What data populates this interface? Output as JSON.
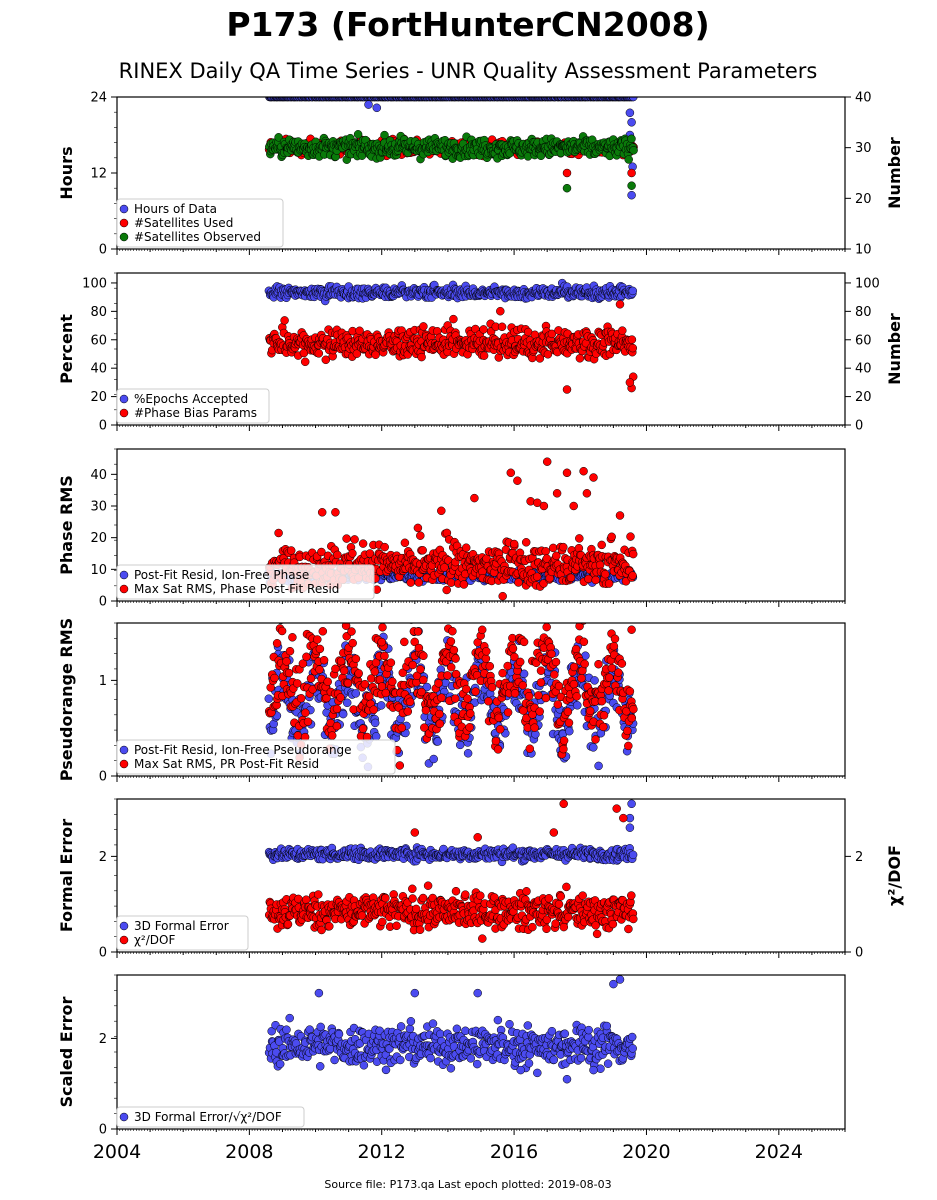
{
  "title": "P173 (FortHunterCN2008)",
  "subtitle": "RINEX Daily QA Time Series - UNR Quality Assessment Parameters",
  "footer": "Source file: P173.qa Last epoch plotted: 2019-08-03",
  "colors": {
    "blue": "#4b4bf0",
    "red": "#ff0000",
    "green": "#0a7a0a",
    "edge": "#000000"
  },
  "chart_data": [
    {
      "type": "scatter",
      "id": "hours",
      "ylabel": "Hours",
      "ylim": [
        0,
        24
      ],
      "yticks": [
        0,
        12,
        24
      ],
      "y2label": "Number",
      "y2lim": [
        10,
        40
      ],
      "y2ticks": [
        10,
        20,
        30,
        40
      ],
      "xlim": [
        2004,
        2026
      ],
      "xticks": [
        2004,
        2008,
        2012,
        2016,
        2020,
        2024
      ],
      "legend_position": "lower-left",
      "series": [
        {
          "name": "Hours of Data",
          "color": "blue",
          "axis": "left",
          "x_range": [
            2008.6,
            2019.6
          ],
          "typical": 24.0,
          "spread": 0.0,
          "outliers": [
            [
              2011.6,
              22.8
            ],
            [
              2011.85,
              22.3
            ],
            [
              2019.5,
              18.0
            ],
            [
              2019.55,
              20.0
            ],
            [
              2019.5,
              21.5
            ],
            [
              2019.58,
              13.0
            ],
            [
              2019.55,
              8.5
            ]
          ]
        },
        {
          "name": "#Satellites Used",
          "color": "red",
          "axis": "right",
          "x_range": [
            2008.6,
            2019.6
          ],
          "typical": 30.0,
          "spread": 0.7,
          "outliers": [
            [
              2009.8,
              30.2
            ],
            [
              2017.6,
              25.0
            ],
            [
              2019.1,
              29.5
            ],
            [
              2019.55,
              25.0
            ]
          ]
        },
        {
          "name": "#Satellites Observed",
          "color": "green",
          "axis": "right",
          "x_range": [
            2008.6,
            2019.6
          ],
          "typical": 30.0,
          "spread": 0.9,
          "outliers": [
            [
              2017.6,
              22.0
            ],
            [
              2019.55,
              22.5
            ]
          ]
        }
      ]
    },
    {
      "type": "scatter",
      "id": "percent",
      "ylabel": "Percent",
      "ylim": [
        0,
        107
      ],
      "yticks": [
        0,
        20,
        40,
        60,
        80,
        100
      ],
      "y2label": "Number",
      "y2lim": [
        0,
        107
      ],
      "y2ticks": [
        0,
        20,
        40,
        60,
        80,
        100
      ],
      "xlim": [
        2004,
        2026
      ],
      "xticks": [
        2004,
        2008,
        2012,
        2016,
        2020,
        2024
      ],
      "legend_position": "lower-left",
      "series": [
        {
          "name": "%Epochs Accepted",
          "color": "blue",
          "axis": "left",
          "x_range": [
            2008.6,
            2019.6
          ],
          "typical": 93.0,
          "spread": 1.8,
          "outliers": []
        },
        {
          "name": "#Phase Bias Params",
          "color": "red",
          "axis": "right",
          "x_range": [
            2008.6,
            2019.6
          ],
          "typical": 57.0,
          "spread": 4.5,
          "outliers": [
            [
              2017.6,
              25.0
            ],
            [
              2019.55,
              26.0
            ],
            [
              2019.6,
              34.0
            ],
            [
              2019.2,
              85.0
            ],
            [
              2019.5,
              30.0
            ]
          ]
        }
      ]
    },
    {
      "type": "scatter",
      "id": "phase",
      "ylabel": "Phase RMS",
      "ylim": [
        0,
        48
      ],
      "yticks": [
        0,
        10,
        20,
        30,
        40
      ],
      "xlim": [
        2004,
        2026
      ],
      "xticks": [
        2004,
        2008,
        2012,
        2016,
        2020,
        2024
      ],
      "legend_position": "lower-left",
      "series": [
        {
          "name": "Post-Fit Resid, Ion-Free Phase",
          "color": "blue",
          "axis": "left",
          "x_range": [
            2008.6,
            2019.6
          ],
          "typical": 8.0,
          "spread": 0.8,
          "outliers": []
        },
        {
          "name": "Max Sat RMS, Phase Post-Fit Resid",
          "color": "red",
          "axis": "left",
          "x_range": [
            2008.6,
            2019.6
          ],
          "typical": 11.0,
          "spread": 3.0,
          "outliers": [
            [
              2015.9,
              40.5
            ],
            [
              2016.1,
              38.0
            ],
            [
              2017.0,
              44.0
            ],
            [
              2017.6,
              40.5
            ],
            [
              2018.1,
              41.0
            ],
            [
              2018.4,
              39.0
            ],
            [
              2018.2,
              34.0
            ],
            [
              2014.8,
              32.5
            ],
            [
              2016.5,
              31.5
            ],
            [
              2016.7,
              31.0
            ],
            [
              2016.9,
              30.0
            ],
            [
              2017.8,
              30.0
            ],
            [
              2010.2,
              28.0
            ],
            [
              2010.6,
              28.0
            ],
            [
              2013.8,
              28.5
            ],
            [
              2019.2,
              27.0
            ],
            [
              2017.3,
              34.0
            ]
          ]
        }
      ]
    },
    {
      "type": "scatter",
      "id": "pseudorange",
      "ylabel": "Pseudorange RMS",
      "ylim": [
        0,
        1.6
      ],
      "yticks": [
        0,
        1
      ],
      "xlim": [
        2004,
        2026
      ],
      "xticks": [
        2004,
        2008,
        2012,
        2016,
        2020,
        2024
      ],
      "legend_position": "lower-left",
      "series": [
        {
          "name": "Post-Fit Resid, Ion-Free Pseudorange",
          "color": "blue",
          "axis": "left",
          "x_range": [
            2008.6,
            2019.6
          ],
          "typical": 0.8,
          "spread": 0.2,
          "seasonal": 0.3,
          "outliers": []
        },
        {
          "name": "Max Sat RMS, PR Post-Fit Resid",
          "color": "red",
          "axis": "left",
          "x_range": [
            2008.6,
            2019.6
          ],
          "typical": 0.95,
          "spread": 0.2,
          "seasonal": 0.3,
          "outliers": [
            [
              2019.55,
              1.53
            ],
            [
              2012.0,
              1.4
            ],
            [
              2009.3,
              1.45
            ]
          ]
        }
      ]
    },
    {
      "type": "scatter",
      "id": "formal",
      "ylabel": "Formal Error",
      "ylim": [
        0,
        3.2
      ],
      "yticks": [
        0,
        2
      ],
      "y2label": "χ²/DOF",
      "y2lim": [
        0,
        3.2
      ],
      "y2ticks": [
        0,
        2
      ],
      "xlim": [
        2004,
        2026
      ],
      "xticks": [
        2004,
        2008,
        2012,
        2016,
        2020,
        2024
      ],
      "legend_position": "lower-left",
      "series": [
        {
          "name": "3D Formal Error",
          "color": "blue",
          "axis": "left",
          "x_range": [
            2008.6,
            2019.6
          ],
          "typical": 2.05,
          "spread": 0.06,
          "outliers": [
            [
              2019.5,
              2.6
            ],
            [
              2019.55,
              3.1
            ],
            [
              2019.5,
              2.8
            ]
          ]
        },
        {
          "name": "χ²/DOF",
          "color": "red",
          "axis": "right",
          "x_range": [
            2008.6,
            2019.6
          ],
          "typical": 0.85,
          "spread": 0.18,
          "outliers": [
            [
              2017.5,
              3.1
            ],
            [
              2019.1,
              3.0
            ],
            [
              2013.0,
              2.5
            ],
            [
              2014.9,
              2.4
            ],
            [
              2017.2,
              2.5
            ],
            [
              2019.3,
              2.8
            ]
          ]
        }
      ]
    },
    {
      "type": "scatter",
      "id": "scaled",
      "ylabel": "Scaled Error",
      "ylim": [
        0,
        3.4
      ],
      "yticks": [
        0,
        2
      ],
      "xlim": [
        2004,
        2026
      ],
      "xticks": [
        2004,
        2008,
        2012,
        2016,
        2020,
        2024
      ],
      "legend_position": "lower-left",
      "series": [
        {
          "name": "3D Formal Error/√χ²/DOF",
          "color": "blue",
          "axis": "left",
          "x_range": [
            2008.6,
            2019.6
          ],
          "typical": 1.85,
          "spread": 0.22,
          "outliers": [
            [
              2019.2,
              3.3
            ],
            [
              2019.0,
              3.2
            ],
            [
              2013.0,
              3.0
            ],
            [
              2014.9,
              3.0
            ],
            [
              2010.1,
              3.0
            ],
            [
              2017.6,
              1.1
            ],
            [
              2016.2,
              1.3
            ],
            [
              2018.4,
              1.3
            ]
          ]
        }
      ]
    }
  ]
}
